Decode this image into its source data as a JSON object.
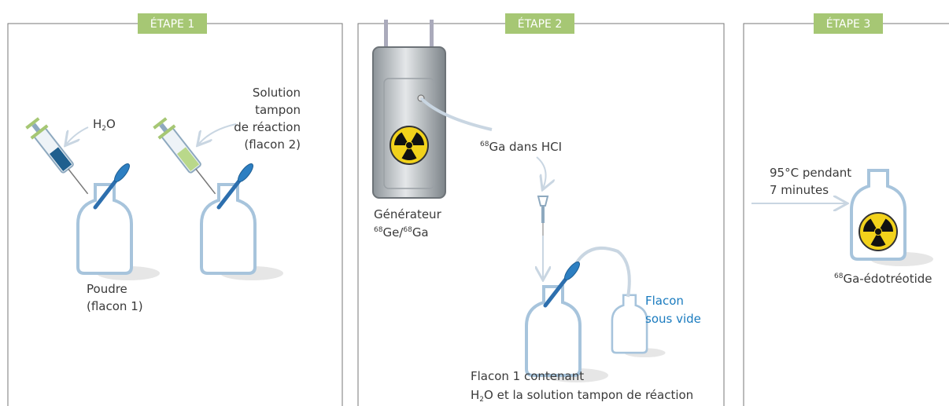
{
  "steps": [
    {
      "label": "ÉTAPE 1"
    },
    {
      "label": "ÉTAPE 2"
    },
    {
      "label": "ÉTAPE 3"
    }
  ],
  "step1": {
    "water": {
      "main": "H",
      "sub": "2",
      "rest": "O"
    },
    "buffer": [
      "Solution",
      "tampon",
      "de réaction",
      "(flacon 2)"
    ],
    "powder": [
      "Poudre",
      "(flacon 1)"
    ]
  },
  "step2": {
    "generator": "Générateur",
    "isotopes": {
      "sup1": "68",
      "text1": "Ge/",
      "sup2": "68",
      "text2": "Ga"
    },
    "eluate": {
      "sup": "68",
      "text": "Ga dans HCI"
    },
    "vacuum": [
      "Flacon",
      "sous vide"
    ],
    "vial": {
      "line1": "Flacon 1 contenant",
      "main": "H",
      "sub": "2",
      "rest": "O et la solution tampon de réaction"
    }
  },
  "step3": {
    "heating": [
      "95°C pendant",
      "7 minutes"
    ],
    "product": {
      "sup": "68",
      "text": "Ga-édotréotide"
    }
  }
}
